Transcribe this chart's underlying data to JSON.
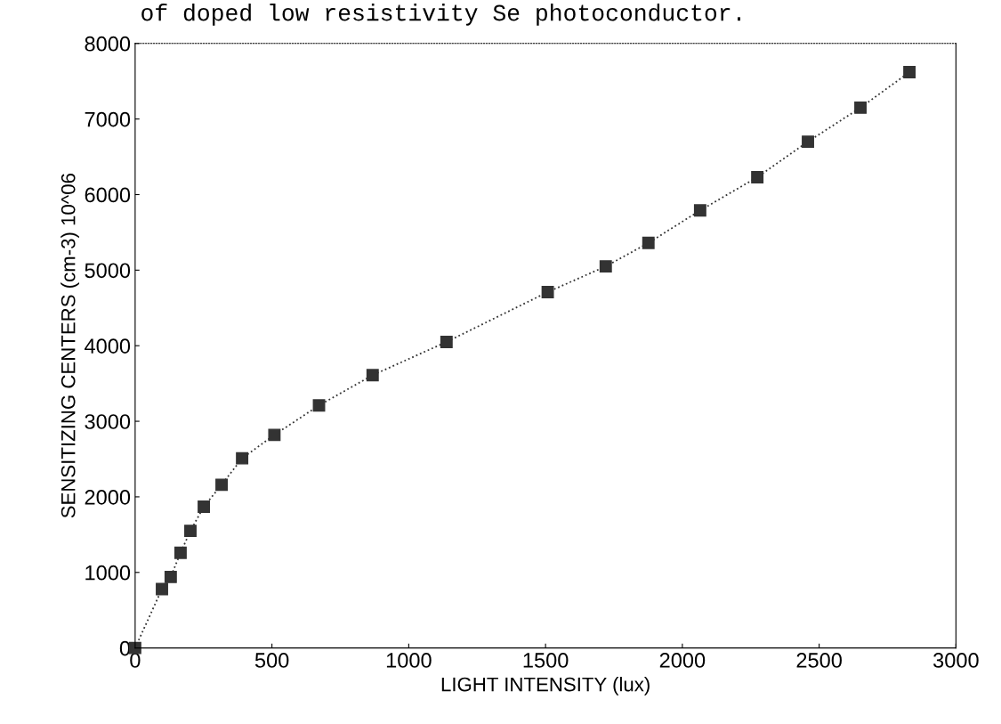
{
  "chart_data": {
    "type": "line",
    "title": "of doped low resistivity Se photoconductor.",
    "xlabel": "LIGHT INTENSITY (lux)",
    "ylabel": "SENSITIZING CENTERS (cm-3) 10^06",
    "x": [
      0,
      98,
      130,
      166,
      202,
      251,
      316,
      391,
      509,
      672,
      868,
      1138,
      1508,
      1720,
      1876,
      2065,
      2274,
      2459,
      2651,
      2830
    ],
    "series": [
      {
        "color": "#333333",
        "values": [
          0,
          780,
          940,
          1260,
          1550,
          1870,
          2160,
          2510,
          2820,
          3210,
          3610,
          4050,
          4710,
          5050,
          5360,
          5790,
          6230,
          6700,
          7150,
          7620
        ]
      }
    ],
    "xlim": [
      0,
      3000
    ],
    "ylim": [
      0,
      8000
    ],
    "xticks": [
      0,
      500,
      1000,
      1500,
      2000,
      2500,
      3000
    ],
    "yticks": [
      0,
      1000,
      2000,
      3000,
      4000,
      5000,
      6000,
      7000,
      8000
    ],
    "grid": false,
    "marker": "square",
    "line_style": "dotted"
  }
}
